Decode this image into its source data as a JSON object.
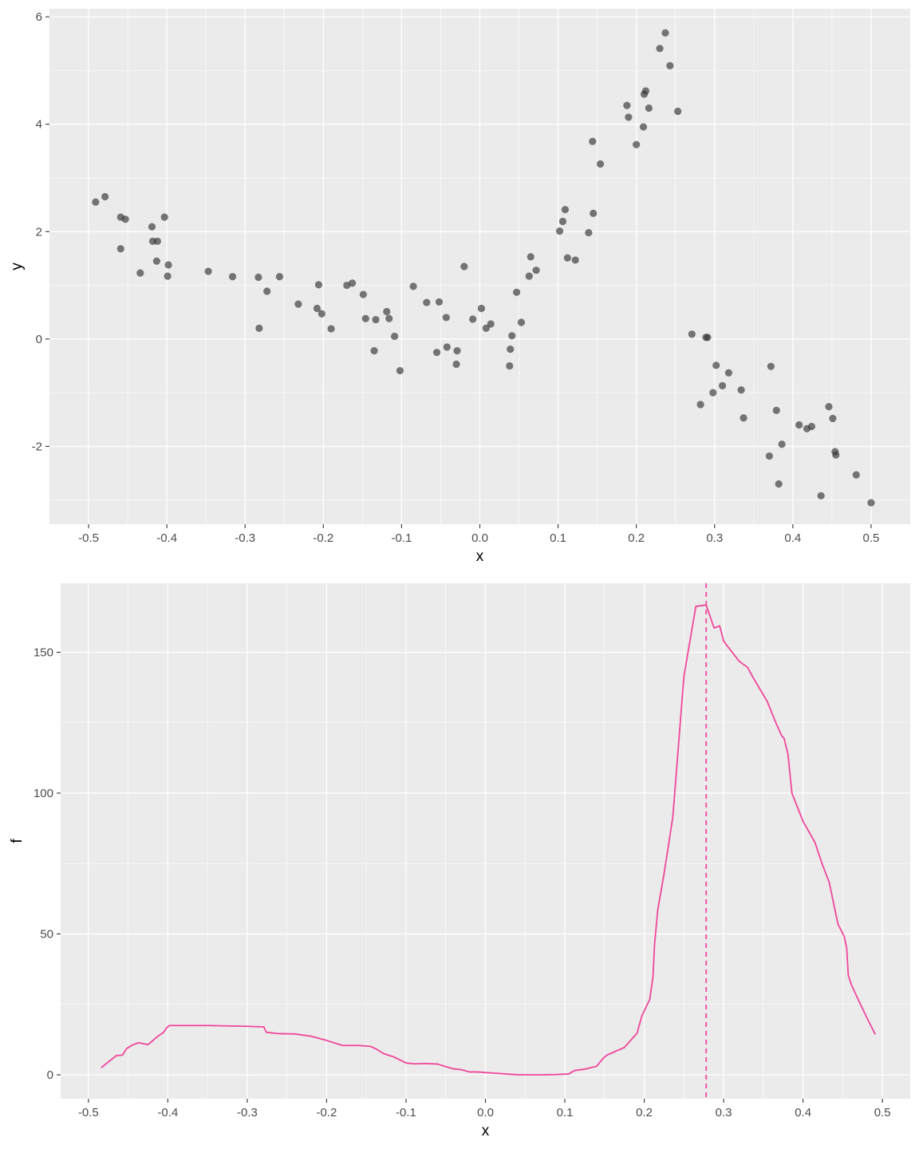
{
  "chart_data": [
    {
      "type": "scatter",
      "xlabel": "x",
      "ylabel": "y",
      "xlim": [
        -0.55,
        0.55
      ],
      "ylim": [
        -3.45,
        6.15
      ],
      "x_ticks": [
        -0.5,
        -0.4,
        -0.3,
        -0.2,
        -0.1,
        0.0,
        0.1,
        0.2,
        0.3,
        0.4,
        0.5
      ],
      "x_tick_labels": [
        "-0.5",
        "-0.4",
        "-0.3",
        "-0.2",
        "-0.1",
        "0.0",
        "0.1",
        "0.2",
        "0.3",
        "0.4",
        "0.5"
      ],
      "y_ticks": [
        -2,
        0,
        2,
        4,
        6
      ],
      "y_tick_labels": [
        "-2",
        "0",
        "2",
        "4",
        "6"
      ],
      "grid": true,
      "point_color": "#333333",
      "points": [
        [
          -0.491,
          2.55
        ],
        [
          -0.479,
          2.65
        ],
        [
          -0.459,
          2.27
        ],
        [
          -0.453,
          2.23
        ],
        [
          -0.459,
          1.68
        ],
        [
          -0.434,
          1.23
        ],
        [
          -0.419,
          2.09
        ],
        [
          -0.418,
          1.82
        ],
        [
          -0.412,
          1.82
        ],
        [
          -0.413,
          1.45
        ],
        [
          -0.403,
          2.27
        ],
        [
          -0.399,
          1.17
        ],
        [
          -0.398,
          1.38
        ],
        [
          -0.347,
          1.26
        ],
        [
          -0.316,
          1.16
        ],
        [
          -0.283,
          1.15
        ],
        [
          -0.282,
          0.2
        ],
        [
          -0.272,
          0.89
        ],
        [
          -0.256,
          1.16
        ],
        [
          -0.232,
          0.65
        ],
        [
          -0.208,
          0.57
        ],
        [
          -0.206,
          1.01
        ],
        [
          -0.202,
          0.47
        ],
        [
          -0.19,
          0.19
        ],
        [
          -0.17,
          1.0
        ],
        [
          -0.163,
          1.04
        ],
        [
          -0.149,
          0.83
        ],
        [
          -0.146,
          0.38
        ],
        [
          -0.135,
          -0.22
        ],
        [
          -0.133,
          0.36
        ],
        [
          -0.119,
          0.51
        ],
        [
          -0.116,
          0.38
        ],
        [
          -0.109,
          0.05
        ],
        [
          -0.102,
          -0.59
        ],
        [
          -0.085,
          0.98
        ],
        [
          -0.068,
          0.68
        ],
        [
          -0.055,
          -0.25
        ],
        [
          -0.052,
          0.69
        ],
        [
          -0.043,
          0.4
        ],
        [
          -0.042,
          -0.15
        ],
        [
          -0.03,
          -0.47
        ],
        [
          -0.029,
          -0.22
        ],
        [
          -0.02,
          1.35
        ],
        [
          -0.009,
          0.37
        ],
        [
          0.002,
          0.57
        ],
        [
          0.008,
          0.2
        ],
        [
          0.014,
          0.28
        ],
        [
          0.038,
          -0.5
        ],
        [
          0.039,
          -0.19
        ],
        [
          0.041,
          0.06
        ],
        [
          0.047,
          0.87
        ],
        [
          0.053,
          0.31
        ],
        [
          0.063,
          1.17
        ],
        [
          0.065,
          1.53
        ],
        [
          0.072,
          1.28
        ],
        [
          0.102,
          2.01
        ],
        [
          0.106,
          2.19
        ],
        [
          0.109,
          2.41
        ],
        [
          0.112,
          1.51
        ],
        [
          0.122,
          1.47
        ],
        [
          0.139,
          1.98
        ],
        [
          0.144,
          3.68
        ],
        [
          0.145,
          2.34
        ],
        [
          0.154,
          3.26
        ],
        [
          0.188,
          4.35
        ],
        [
          0.19,
          4.13
        ],
        [
          0.2,
          3.62
        ],
        [
          0.209,
          3.95
        ],
        [
          0.21,
          4.56
        ],
        [
          0.212,
          4.62
        ],
        [
          0.216,
          4.3
        ],
        [
          0.23,
          5.41
        ],
        [
          0.237,
          5.7
        ],
        [
          0.243,
          5.09
        ],
        [
          0.253,
          4.24
        ],
        [
          0.271,
          0.09
        ],
        [
          0.282,
          -1.22
        ],
        [
          0.289,
          0.03
        ],
        [
          0.291,
          0.03
        ],
        [
          0.298,
          -1.0
        ],
        [
          0.302,
          -0.49
        ],
        [
          0.31,
          -0.87
        ],
        [
          0.318,
          -0.63
        ],
        [
          0.334,
          -0.95
        ],
        [
          0.337,
          -1.47
        ],
        [
          0.37,
          -2.18
        ],
        [
          0.372,
          -0.51
        ],
        [
          0.379,
          -1.33
        ],
        [
          0.382,
          -2.7
        ],
        [
          0.386,
          -1.96
        ],
        [
          0.408,
          -1.6
        ],
        [
          0.418,
          -1.67
        ],
        [
          0.424,
          -1.63
        ],
        [
          0.436,
          -2.92
        ],
        [
          0.446,
          -1.26
        ],
        [
          0.451,
          -1.48
        ],
        [
          0.454,
          -2.1
        ],
        [
          0.455,
          -2.16
        ],
        [
          0.481,
          -2.53
        ],
        [
          0.5,
          -3.05
        ]
      ]
    },
    {
      "type": "line",
      "xlabel": "x",
      "ylabel": "f",
      "xlim": [
        -0.535,
        0.535
      ],
      "ylim": [
        -8.5,
        174.5
      ],
      "x_ticks": [
        -0.5,
        -0.4,
        -0.3,
        -0.2,
        -0.1,
        0.0,
        0.1,
        0.2,
        0.3,
        0.4,
        0.5
      ],
      "x_tick_labels": [
        "-0.5",
        "-0.4",
        "-0.3",
        "-0.2",
        "-0.1",
        "0.0",
        "0.1",
        "0.2",
        "0.3",
        "0.4",
        "0.5"
      ],
      "y_ticks": [
        0,
        50,
        100,
        150
      ],
      "y_tick_labels": [
        "0",
        "50",
        "100",
        "150"
      ],
      "grid": true,
      "line_color": "#F0469A",
      "vline": 0.278,
      "x": [
        -0.484,
        -0.465,
        -0.457,
        -0.452,
        -0.445,
        -0.437,
        -0.425,
        -0.412,
        -0.406,
        -0.401,
        -0.398,
        -0.35,
        -0.3,
        -0.279,
        -0.276,
        -0.26,
        -0.24,
        -0.22,
        -0.2,
        -0.18,
        -0.16,
        -0.15,
        -0.145,
        -0.138,
        -0.128,
        -0.115,
        -0.1,
        -0.09,
        -0.075,
        -0.06,
        -0.05,
        -0.04,
        -0.03,
        -0.02,
        -0.01,
        0.0,
        0.01,
        0.02,
        0.03,
        0.04,
        0.05,
        0.06,
        0.07,
        0.08,
        0.09,
        0.105,
        0.112,
        0.125,
        0.14,
        0.148,
        0.153,
        0.175,
        0.191,
        0.197,
        0.207,
        0.211,
        0.213,
        0.217,
        0.225,
        0.236,
        0.25,
        0.265,
        0.278,
        0.288,
        0.295,
        0.3,
        0.305,
        0.32,
        0.33,
        0.337,
        0.355,
        0.365,
        0.373,
        0.376,
        0.381,
        0.386,
        0.4,
        0.415,
        0.424,
        0.433,
        0.444,
        0.452,
        0.455,
        0.457,
        0.461,
        0.47,
        0.48,
        0.491
      ],
      "y": [
        2.5,
        6.8,
        7.0,
        9.3,
        10.5,
        11.4,
        10.7,
        13.8,
        14.9,
        16.8,
        17.5,
        17.5,
        17.2,
        17.0,
        15.1,
        14.6,
        14.5,
        13.7,
        12.2,
        10.4,
        10.4,
        10.2,
        10.1,
        9.2,
        7.5,
        6.3,
        4.2,
        3.9,
        4.0,
        3.8,
        2.9,
        2.1,
        1.8,
        1.0,
        1.0,
        0.8,
        0.6,
        0.4,
        0.2,
        0.05,
        0.0,
        0.0,
        0.0,
        0.05,
        0.1,
        0.3,
        1.5,
        2.0,
        3.0,
        5.8,
        7.0,
        9.7,
        14.8,
        20.9,
        26.8,
        34.8,
        46.2,
        58.5,
        71.4,
        91.5,
        141.5,
        166.3,
        166.8,
        158.6,
        159.4,
        154.0,
        152.1,
        146.7,
        144.7,
        141.1,
        132.5,
        125.5,
        120.4,
        119.5,
        113.9,
        100.0,
        90.0,
        82.5,
        74.9,
        68.3,
        53.5,
        49.0,
        45.0,
        35.3,
        31.9,
        26.4,
        20.5,
        14.3
      ]
    }
  ]
}
